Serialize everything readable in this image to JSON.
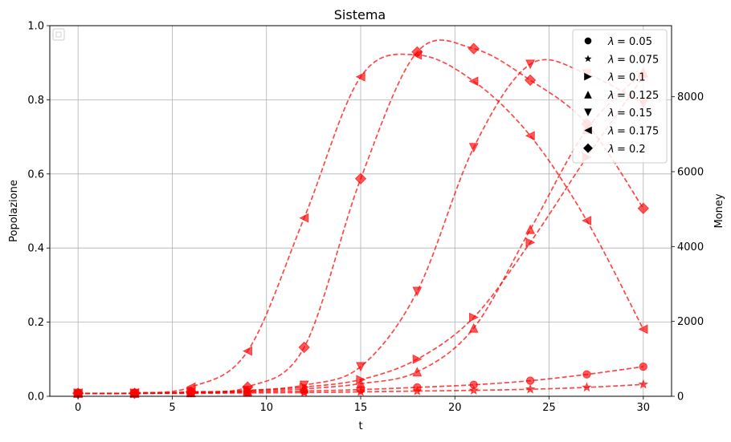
{
  "chart_data": {
    "type": "line",
    "title": "Sistema",
    "xlabel": "t",
    "ylabel": "Popolazione",
    "y2label": "Money",
    "xlim": [
      -1.5,
      31.5
    ],
    "ylim": [
      0,
      1
    ],
    "y2lim": [
      0,
      9900
    ],
    "xticks": [
      0,
      5,
      10,
      15,
      20,
      25,
      30
    ],
    "yticks": [
      0,
      0.2,
      0.4,
      0.6,
      0.8,
      1.0
    ],
    "ytick_labels": [
      "0.0",
      "0.2",
      "0.4",
      "0.6",
      "0.8",
      "1.0"
    ],
    "y2ticks": [
      0,
      2000,
      4000,
      6000,
      8000
    ],
    "grid": true,
    "legend_position": "top-right",
    "line_color": "#ff0000",
    "x": [
      0,
      3,
      6,
      9,
      12,
      15,
      18,
      21,
      24,
      27,
      30
    ],
    "series": [
      {
        "name": "λ = 0.05",
        "legend_text": "= 0.05",
        "marker": "circle",
        "values": [
          0.008,
          0.008,
          0.009,
          0.011,
          0.014,
          0.018,
          0.024,
          0.031,
          0.042,
          0.059,
          0.08
        ]
      },
      {
        "name": "λ = 0.075",
        "legend_text": "= 0.075",
        "marker": "star",
        "values": [
          0.008,
          0.008,
          0.008,
          0.009,
          0.01,
          0.012,
          0.014,
          0.016,
          0.019,
          0.024,
          0.032
        ]
      },
      {
        "name": "λ = 0.1",
        "legend_text": "= 0.1",
        "marker": "triangle-right",
        "values": [
          0.008,
          0.008,
          0.01,
          0.015,
          0.025,
          0.045,
          0.1,
          0.213,
          0.415,
          0.645,
          0.862
        ]
      },
      {
        "name": "λ = 0.125",
        "legend_text": "= 0.125",
        "marker": "triangle-up",
        "values": [
          0.008,
          0.008,
          0.01,
          0.013,
          0.02,
          0.034,
          0.066,
          0.184,
          0.45,
          0.72,
          0.875
        ]
      },
      {
        "name": "λ = 0.15",
        "legend_text": "= 0.15",
        "marker": "triangle-down",
        "values": [
          0.008,
          0.008,
          0.011,
          0.016,
          0.03,
          0.08,
          0.283,
          0.671,
          0.896,
          0.87,
          0.79
        ]
      },
      {
        "name": "λ = 0.175",
        "legend_text": "= 0.175",
        "marker": "triangle-left",
        "values": [
          0.008,
          0.009,
          0.025,
          0.122,
          0.481,
          0.862,
          0.921,
          0.85,
          0.703,
          0.474,
          0.181
        ]
      },
      {
        "name": "λ = 0.2",
        "legend_text": "= 0.2",
        "marker": "diamond",
        "values": [
          0.008,
          0.008,
          0.012,
          0.025,
          0.132,
          0.587,
          0.929,
          0.938,
          0.853,
          0.735,
          0.507
        ]
      }
    ]
  }
}
